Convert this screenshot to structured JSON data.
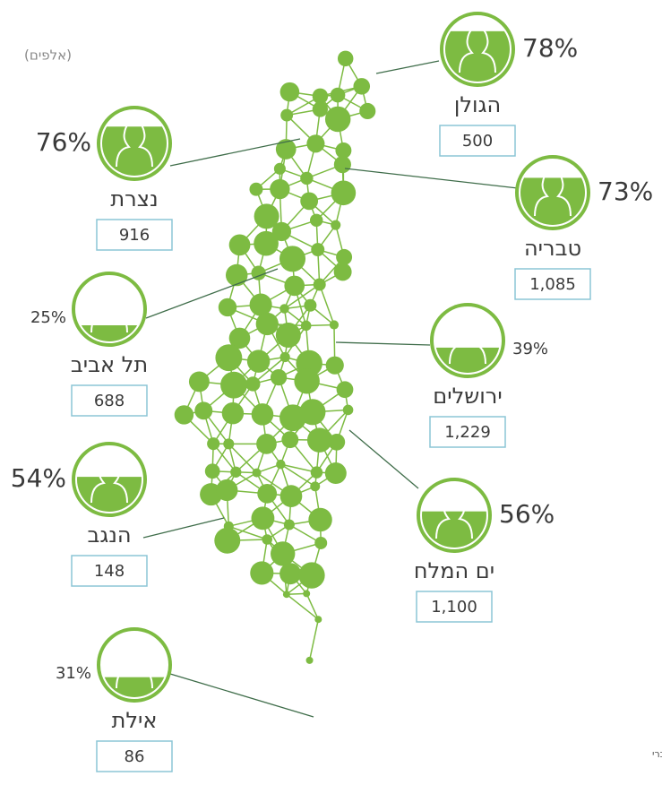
{
  "unit_note": "(אלפים)",
  "regions": [
    {
      "name": "הגולן",
      "percent": 78,
      "percent_label": "78%",
      "value": "500"
    },
    {
      "name": "נצרת",
      "percent": 76,
      "percent_label": "76%",
      "value": "916"
    },
    {
      "name": "טבריה",
      "percent": 73,
      "percent_label": "73%",
      "value": "1,085"
    },
    {
      "name": "תל אביב",
      "percent": 25,
      "percent_label": "25%",
      "value": "688"
    },
    {
      "name": "ירושלים",
      "percent": 39,
      "percent_label": "39%",
      "value": "1,229"
    },
    {
      "name": "הנגב",
      "percent": 54,
      "percent_label": "54%",
      "value": "148"
    },
    {
      "name": "ים המלח",
      "percent": 56,
      "percent_label": "56%",
      "value": "1,100"
    },
    {
      "name": "אילת",
      "percent": 31,
      "percent_label": "31%",
      "value": "86"
    }
  ],
  "footnote": "הלשכה כי 25% מבין התיירים שהגיעו באמצעות חבילת תיור עשו זאת באמצעות חברי"
}
